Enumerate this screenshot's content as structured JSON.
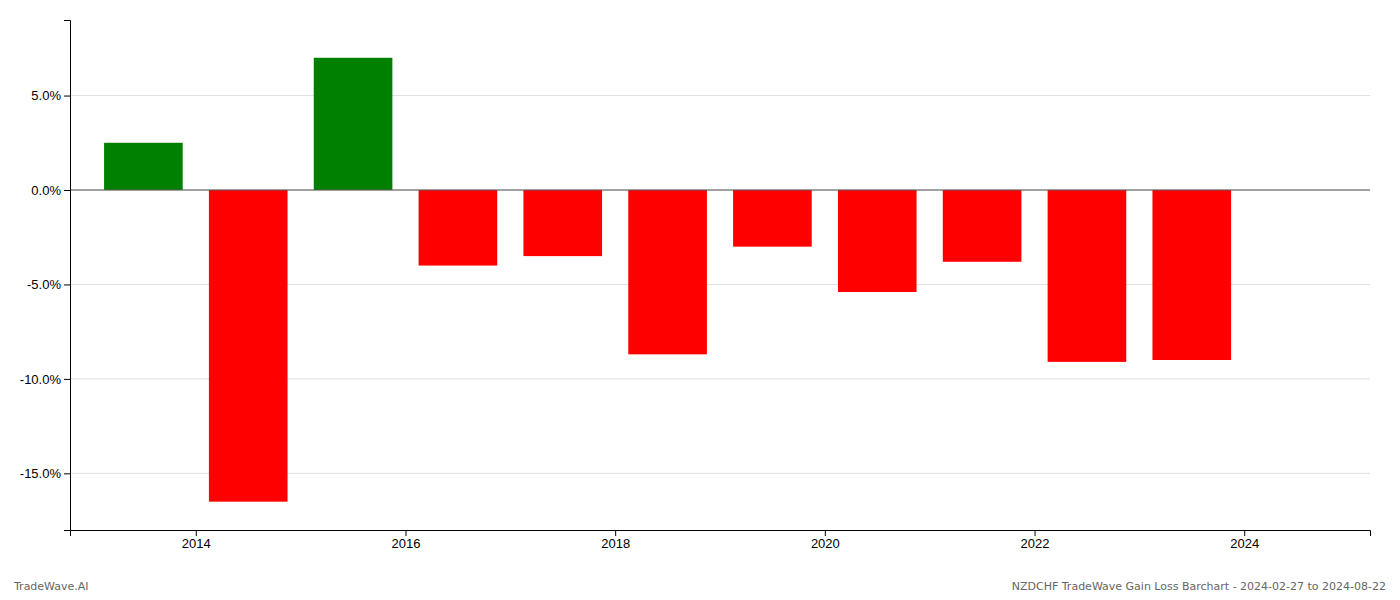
{
  "chart_data": {
    "type": "bar",
    "x": [
      2013.5,
      2014.5,
      2015.5,
      2016.5,
      2017.5,
      2018.5,
      2019.5,
      2020.5,
      2021.5,
      2022.5,
      2023.5
    ],
    "values": [
      2.5,
      -16.5,
      7.0,
      -4.0,
      -3.5,
      -8.7,
      -3.0,
      -5.4,
      -3.8,
      -9.1,
      -9.0
    ],
    "colors": [
      "#008000",
      "#FF0000",
      "#008000",
      "#FF0000",
      "#FF0000",
      "#FF0000",
      "#FF0000",
      "#FF0000",
      "#FF0000",
      "#FF0000",
      "#FF0000"
    ],
    "xlim": [
      2012.8,
      2025.2
    ],
    "xticks": [
      2014,
      2016,
      2018,
      2020,
      2022,
      2024
    ],
    "ylim": [
      -18,
      9
    ],
    "yticks": [
      {
        "value": -15.0,
        "label": "-15.0%"
      },
      {
        "value": -10.0,
        "label": "-10.0%"
      },
      {
        "value": -5.0,
        "label": "-5.0%"
      },
      {
        "value": 0.0,
        "label": "0.0%"
      },
      {
        "value": 5.0,
        "label": "5.0%"
      }
    ],
    "grid": true,
    "annotations": [
      "TradeWave.AI",
      "NZDCHF TradeWave Gain Loss Barchart - 2024-02-27 to 2024-08-22"
    ]
  }
}
